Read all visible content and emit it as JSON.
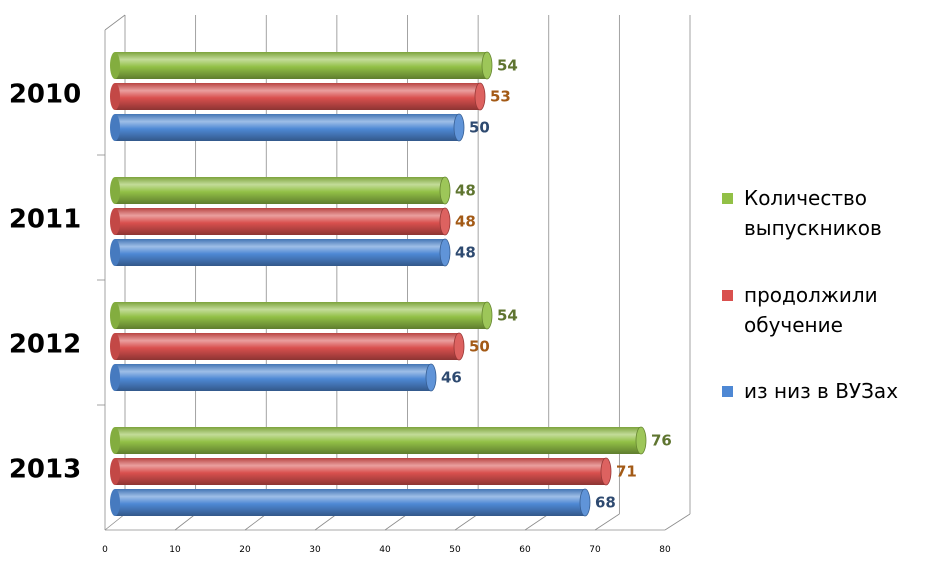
{
  "chart_data": {
    "type": "bar",
    "orientation": "horizontal",
    "style": "3d-cylinder",
    "categories": [
      "2010",
      "2011",
      "2012",
      "2013"
    ],
    "series": [
      {
        "name": "Количество выпускников",
        "legend_lines": [
          "Количество",
          "выпускников"
        ],
        "color": "#92C046",
        "label_color": "#5F7530",
        "values": [
          54,
          48,
          54,
          76
        ]
      },
      {
        "name": "продолжили обучение",
        "legend_lines": [
          "продолжили",
          "обучение"
        ],
        "color": "#D9504E",
        "label_color": "#A35A16",
        "values": [
          53,
          48,
          50,
          71
        ]
      },
      {
        "name": "из низ в ВУЗах",
        "legend_lines": [
          "из низ в ВУЗах"
        ],
        "color": "#4E88D4",
        "label_color": "#2E4A70",
        "values": [
          50,
          48,
          46,
          68
        ]
      }
    ],
    "x_ticks": [
      0,
      10,
      20,
      30,
      40,
      50,
      60,
      70,
      80
    ],
    "xlim": [
      0,
      80
    ],
    "title": "",
    "xlabel": "",
    "ylabel": "",
    "grid": true,
    "legend_position": "right"
  }
}
